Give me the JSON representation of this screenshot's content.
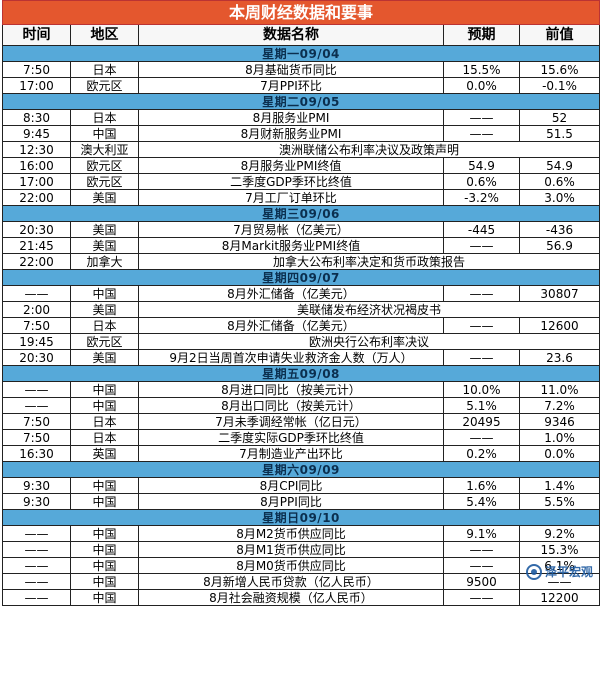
{
  "title": "本周财经数据和要事",
  "headers": {
    "time": "时间",
    "region": "地区",
    "name": "数据名称",
    "forecast": "预期",
    "previous": "前值"
  },
  "days": [
    {
      "label": "星期一09/04",
      "events": [
        {
          "time": "7:50",
          "region": "日本",
          "name": "8月基础货币同比",
          "forecast": "15.5%",
          "previous": "15.6%"
        },
        {
          "time": "17:00",
          "region": "欧元区",
          "name": "7月PPI环比",
          "forecast": "0.0%",
          "previous": "-0.1%"
        }
      ]
    },
    {
      "label": "星期二09/05",
      "events": [
        {
          "time": "8:30",
          "region": "日本",
          "name": "8月服务业PMI",
          "forecast": "——",
          "previous": "52"
        },
        {
          "time": "9:45",
          "region": "中国",
          "name": "8月财新服务业PMI",
          "forecast": "——",
          "previous": "51.5"
        },
        {
          "time": "12:30",
          "region": "澳大利亚",
          "name": "澳洲联储公布利率决议及政策声明",
          "span": true
        },
        {
          "time": "16:00",
          "region": "欧元区",
          "name": "8月服务业PMI终值",
          "forecast": "54.9",
          "previous": "54.9"
        },
        {
          "time": "17:00",
          "region": "欧元区",
          "name": "二季度GDP季环比终值",
          "forecast": "0.6%",
          "previous": "0.6%"
        },
        {
          "time": "22:00",
          "region": "美国",
          "name": "7月工厂订单环比",
          "forecast": "-3.2%",
          "previous": "3.0%"
        }
      ]
    },
    {
      "label": "星期三09/06",
      "events": [
        {
          "time": "20:30",
          "region": "美国",
          "name": "7月贸易帐（亿美元）",
          "forecast": "-445",
          "previous": "-436"
        },
        {
          "time": "21:45",
          "region": "美国",
          "name": "8月Markit服务业PMI终值",
          "forecast": "——",
          "previous": "56.9"
        },
        {
          "time": "22:00",
          "region": "加拿大",
          "name": "加拿大公布利率决定和货币政策报告",
          "span": true
        }
      ]
    },
    {
      "label": "星期四09/07",
      "events": [
        {
          "time": "——",
          "region": "中国",
          "name": "8月外汇储备（亿美元）",
          "forecast": "——",
          "previous": "30807"
        },
        {
          "time": "2:00",
          "region": "美国",
          "name": "美联储发布经济状况褐皮书",
          "span": true
        },
        {
          "time": "7:50",
          "region": "日本",
          "name": "8月外汇储备（亿美元）",
          "forecast": "——",
          "previous": "12600"
        },
        {
          "time": "19:45",
          "region": "欧元区",
          "name": "欧洲央行公布利率决议",
          "span": true
        },
        {
          "time": "20:30",
          "region": "美国",
          "name": "9月2日当周首次申请失业救济金人数（万人）",
          "forecast": "——",
          "previous": "23.6"
        }
      ]
    },
    {
      "label": "星期五09/08",
      "events": [
        {
          "time": "——",
          "region": "中国",
          "name": "8月进口同比（按美元计）",
          "forecast": "10.0%",
          "previous": "11.0%"
        },
        {
          "time": "——",
          "region": "中国",
          "name": "8月出口同比（按美元计）",
          "forecast": "5.1%",
          "previous": "7.2%"
        },
        {
          "time": "7:50",
          "region": "日本",
          "name": "7月未季调经常帐（亿日元）",
          "forecast": "20495",
          "previous": "9346"
        },
        {
          "time": "7:50",
          "region": "日本",
          "name": "二季度实际GDP季环比终值",
          "forecast": "——",
          "previous": "1.0%"
        },
        {
          "time": "16:30",
          "region": "英国",
          "name": "7月制造业产出环比",
          "forecast": "0.2%",
          "previous": "0.0%"
        }
      ]
    },
    {
      "label": "星期六09/09",
      "events": [
        {
          "time": "9:30",
          "region": "中国",
          "name": "8月CPI同比",
          "forecast": "1.6%",
          "previous": "1.4%"
        },
        {
          "time": "9:30",
          "region": "中国",
          "name": "8月PPI同比",
          "forecast": "5.4%",
          "previous": "5.5%"
        }
      ]
    },
    {
      "label": "星期日09/10",
      "events": [
        {
          "time": "——",
          "region": "中国",
          "name": "8月M2货币供应同比",
          "forecast": "9.1%",
          "previous": "9.2%"
        },
        {
          "time": "——",
          "region": "中国",
          "name": "8月M1货币供应同比",
          "forecast": "——",
          "previous": "15.3%"
        },
        {
          "time": "——",
          "region": "中国",
          "name": "8月M0货币供应同比",
          "forecast": "——",
          "previous": "6.1%"
        },
        {
          "time": "——",
          "region": "中国",
          "name": "8月新增人民币贷款（亿人民币）",
          "forecast": "9500",
          "previous": "——"
        },
        {
          "time": "——",
          "region": "中国",
          "name": "8月社会融资规模（亿人民币）",
          "forecast": "——",
          "previous": "12200"
        }
      ]
    }
  ],
  "watermark": {
    "text": "泽平宏观",
    "icon": "wechat-logo-icon"
  }
}
